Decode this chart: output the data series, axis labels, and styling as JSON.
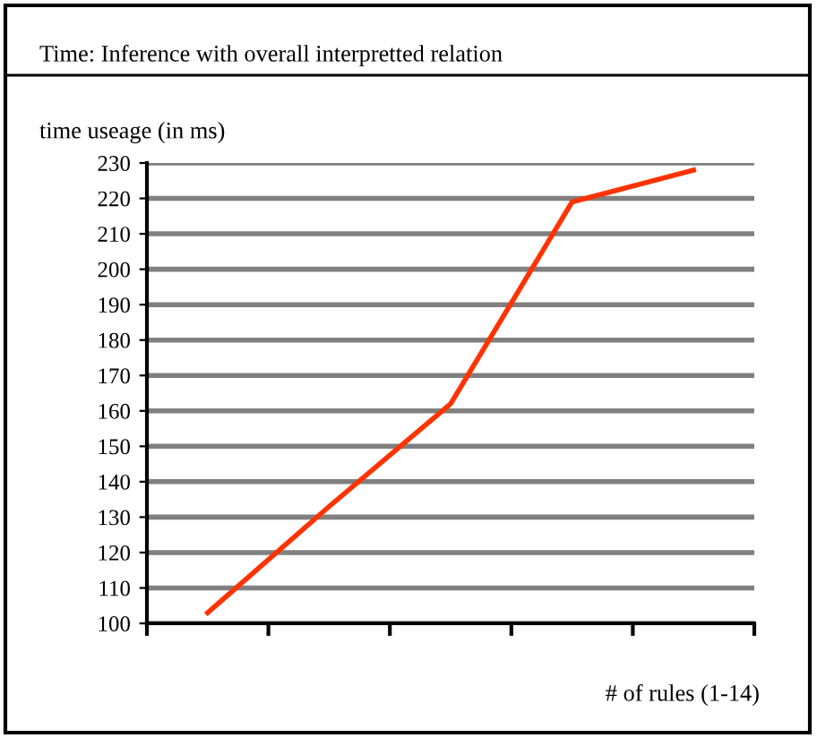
{
  "chart_data": {
    "type": "line",
    "title": "Time: Inference with overall interpretted relation",
    "ylabel": "time useage (in ms)",
    "xlabel": "# of rules (1-14)",
    "categories": [
      null,
      null,
      null,
      null,
      null
    ],
    "series": [
      {
        "color": "#ff3300",
        "values": [
          103,
          133,
          162,
          219,
          228
        ]
      }
    ],
    "ylim": [
      100,
      230
    ],
    "yticks": [
      100,
      110,
      120,
      130,
      140,
      150,
      160,
      170,
      180,
      190,
      200,
      210,
      220,
      230
    ],
    "grid": "y",
    "legend": false,
    "marker": "none",
    "line_style": "solid"
  }
}
